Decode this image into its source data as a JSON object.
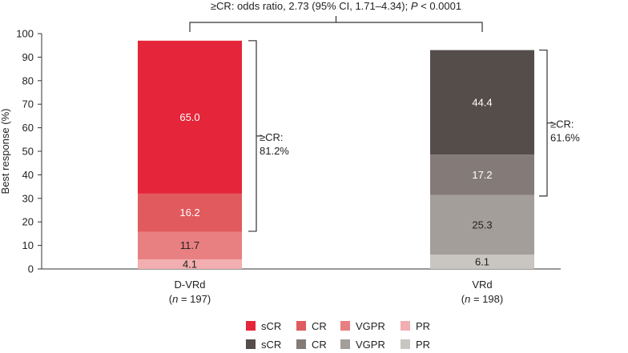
{
  "chart_data": {
    "type": "bar",
    "stacked": true,
    "ylabel": "Best response (%)",
    "ylim": [
      0,
      100
    ],
    "yticks": [
      0,
      10,
      20,
      30,
      40,
      50,
      60,
      70,
      80,
      90,
      100
    ],
    "categories": [
      {
        "name": "D-VRd",
        "n_prefix": "(",
        "n_italic": "n",
        "n_suffix": " = 197)"
      },
      {
        "name": "VRd",
        "n_prefix": "(",
        "n_italic": "n",
        "n_suffix": " = 198)"
      }
    ],
    "series": [
      {
        "name": "PR",
        "values": [
          4.1,
          6.1
        ],
        "colors": [
          "#f2aeb0",
          "#c9c5c1"
        ],
        "label_colors": [
          "#222222",
          "#222222"
        ]
      },
      {
        "name": "VGPR",
        "values": [
          11.7,
          25.3
        ],
        "colors": [
          "#e87f80",
          "#a39e99"
        ],
        "label_colors": [
          "#222222",
          "#222222"
        ]
      },
      {
        "name": "CR",
        "values": [
          16.2,
          17.2
        ],
        "colors": [
          "#e15a5d",
          "#847b78"
        ],
        "label_colors": [
          "#ffffff",
          "#ffffff"
        ]
      },
      {
        "name": "sCR",
        "values": [
          65.0,
          44.4
        ],
        "colors": [
          "#e5263a",
          "#544d4a"
        ],
        "label_colors": [
          "#ffffff",
          "#ffffff"
        ]
      }
    ],
    "value_labels": [
      [
        "4.1",
        "11.7",
        "16.2",
        "65.0"
      ],
      [
        "6.1",
        "25.3",
        "17.2",
        "44.4"
      ]
    ],
    "brackets": [
      {
        "label_line1": "≥CR:",
        "label_line2": "81.2%",
        "from": 16.0,
        "to": 97.0
      },
      {
        "label_line1": "≥CR:",
        "label_line2": "61.6%",
        "from": 31.0,
        "to": 93.0
      }
    ],
    "comparison": {
      "text_before": "≥CR: odds ratio, 2.73 (95% CI, 1.71–4.34); ",
      "p_italic": "P",
      "text_after": " < 0.0001"
    },
    "legend": [
      [
        {
          "label": "sCR",
          "color": "#e5263a"
        },
        {
          "label": "CR",
          "color": "#e15a5d"
        },
        {
          "label": "VGPR",
          "color": "#e87f80"
        },
        {
          "label": "PR",
          "color": "#f2aeb0"
        }
      ],
      [
        {
          "label": "sCR",
          "color": "#544d4a"
        },
        {
          "label": "CR",
          "color": "#847b78"
        },
        {
          "label": "VGPR",
          "color": "#a39e99"
        },
        {
          "label": "PR",
          "color": "#c9c5c1"
        }
      ]
    ]
  }
}
